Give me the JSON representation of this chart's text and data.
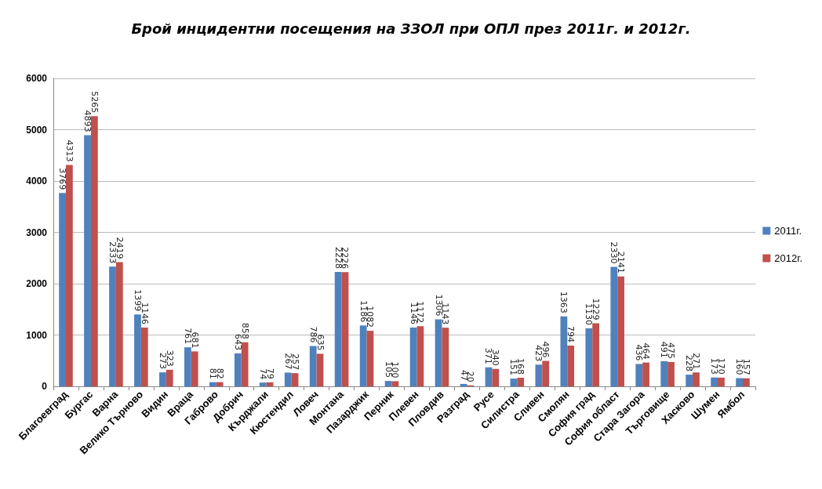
{
  "chart_data": {
    "type": "bar",
    "title": "Брой инцидентни посещения на ЗЗОЛ при ОПЛ през 2011г. и 2012г.",
    "categories": [
      "Благоевград",
      "Бургас",
      "Варна",
      "Велико Търново",
      "Видин",
      "Враца",
      "Габрово",
      "Добрич",
      "Кърджали",
      "Кюстендил",
      "Ловеч",
      "Монтана",
      "Пазарджик",
      "Перник",
      "Плевен",
      "Пловдив",
      "Разград",
      "Русе",
      "Силистра",
      "Сливен",
      "Смолян",
      "София град",
      "София област",
      "Стара Загора",
      "Търговище",
      "Хасково",
      "Шумен",
      "Ямбол"
    ],
    "series": [
      {
        "name": "2011г.",
        "color": "#4f81bd",
        "values": [
          3769,
          4893,
          2333,
          1399,
          273,
          761,
          81,
          643,
          74,
          267,
          786,
          2228,
          1186,
          105,
          1146,
          1306,
          47,
          371,
          151,
          423,
          1363,
          1130,
          2330,
          436,
          491,
          228,
          173,
          160
        ]
      },
      {
        "name": "2012г.",
        "color": "#c0504d",
        "values": [
          4313,
          5265,
          2419,
          1146,
          323,
          681,
          82,
          858,
          79,
          257,
          635,
          2226,
          1082,
          100,
          1172,
          1143,
          20,
          340,
          168,
          496,
          794,
          1229,
          2141,
          464,
          475,
          271,
          170,
          157
        ]
      }
    ],
    "ylim": [
      0,
      6000
    ],
    "yticks": [
      0,
      1000,
      2000,
      3000,
      4000,
      5000,
      6000
    ],
    "grid": "y",
    "legend": "right",
    "data_labels": true
  }
}
